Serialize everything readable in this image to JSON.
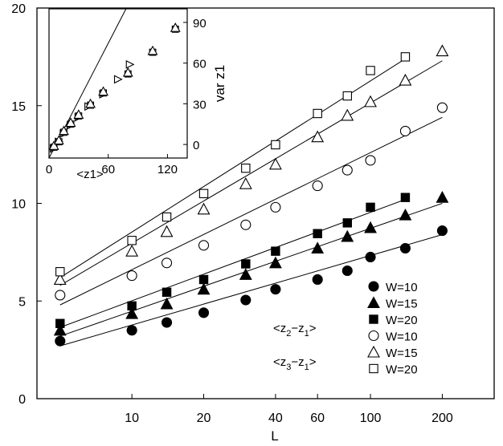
{
  "chart_data": [
    {
      "type": "scatter",
      "x_scale": "log",
      "title": "",
      "xlabel": "L",
      "ylabel": "",
      "xlim": [
        4,
        330
      ],
      "ylim": [
        0,
        20
      ],
      "x_ticks": [
        10,
        20,
        40,
        60,
        100,
        200
      ],
      "y_ticks": [
        0,
        5,
        10,
        15,
        20
      ],
      "grid": false,
      "legend": {
        "placement": "lower-right",
        "entries": [
          "W=10",
          "W=15",
          "W=20",
          "W=10",
          "W=15",
          "W=20"
        ],
        "group_labels": [
          {
            "main": "<z",
            "sub1": "2",
            "mid": "−z",
            "sub2": "1",
            "end": ">"
          },
          {
            "main": "<z",
            "sub1": "3",
            "mid": "−z",
            "sub2": "1",
            "end": ">"
          }
        ]
      },
      "series": [
        {
          "name": "W=10",
          "group": 0,
          "marker": "filled-circle",
          "x": [
            5,
            10,
            14,
            20,
            30,
            40,
            60,
            80,
            100,
            140,
            200
          ],
          "y": [
            2.95,
            3.5,
            3.9,
            4.4,
            5.05,
            5.6,
            6.1,
            6.55,
            7.25,
            7.7,
            8.6
          ],
          "fit_y": [
            2.7,
            8.4
          ]
        },
        {
          "name": "W=15",
          "group": 0,
          "marker": "filled-triangle",
          "x": [
            5,
            10,
            14,
            20,
            30,
            40,
            60,
            80,
            100,
            140,
            200
          ],
          "y": [
            3.5,
            4.35,
            4.85,
            5.6,
            6.35,
            6.95,
            7.7,
            8.3,
            8.75,
            9.4,
            10.3
          ],
          "fit_y": [
            3.2,
            10.0
          ]
        },
        {
          "name": "W=20",
          "group": 0,
          "marker": "filled-square",
          "x": [
            5,
            10,
            14,
            20,
            30,
            40,
            60,
            80,
            100,
            140
          ],
          "y": [
            3.85,
            4.75,
            5.45,
            6.1,
            6.9,
            7.55,
            8.45,
            9.0,
            9.8,
            10.3
          ],
          "fit_y": [
            3.65,
            10.2
          ]
        },
        {
          "name": "W=10",
          "group": 1,
          "marker": "open-circle",
          "x": [
            5,
            10,
            14,
            20,
            30,
            40,
            60,
            80,
            100,
            140,
            200
          ],
          "y": [
            5.3,
            6.3,
            6.95,
            7.85,
            8.9,
            9.8,
            10.9,
            11.7,
            12.2,
            13.7,
            14.9
          ],
          "fit_y": [
            4.8,
            14.4
          ]
        },
        {
          "name": "W=15",
          "group": 1,
          "marker": "open-triangle",
          "x": [
            5,
            10,
            14,
            20,
            30,
            40,
            60,
            80,
            100,
            140,
            200
          ],
          "y": [
            6.1,
            7.55,
            8.55,
            9.7,
            11.0,
            12.0,
            13.4,
            14.5,
            15.2,
            16.3,
            17.8
          ],
          "fit_y": [
            5.8,
            17.3
          ]
        },
        {
          "name": "W=20",
          "group": 1,
          "marker": "open-square",
          "x": [
            5,
            10,
            14,
            20,
            30,
            40,
            60,
            80,
            100,
            140
          ],
          "y": [
            6.5,
            8.1,
            9.3,
            10.5,
            11.8,
            13.0,
            14.6,
            15.5,
            16.8,
            17.5
          ],
          "fit_y": [
            6.2,
            17.4
          ]
        }
      ]
    },
    {
      "type": "scatter",
      "title": "",
      "xlabel": "<z1>",
      "ylabel": "var z1",
      "xlim": [
        0,
        140
      ],
      "ylim": [
        -10,
        100
      ],
      "x_ticks": [
        0,
        60,
        120
      ],
      "y_ticks": [
        0,
        30,
        60,
        90
      ],
      "y_axis_side": "right",
      "reference_line": {
        "x": [
          0,
          78
        ],
        "y": [
          -10,
          100
        ]
      },
      "series": [
        {
          "marker": "open-triangle-right",
          "x": [
            5,
            10,
            15,
            22,
            30,
            40,
            55,
            70,
            82
          ],
          "y": [
            -3,
            2,
            8,
            14,
            20,
            28,
            37,
            48,
            59
          ]
        },
        {
          "marker": "open-square",
          "x": [
            5,
            10,
            15,
            22,
            30,
            42,
            55,
            80,
            105,
            128
          ],
          "y": [
            -2,
            2,
            9,
            15,
            21,
            29,
            38,
            52,
            68,
            85
          ]
        },
        {
          "marker": "open-triangle",
          "x": [
            5,
            10,
            15,
            22,
            30,
            42,
            55,
            80,
            105,
            128
          ],
          "y": [
            -1,
            3,
            10,
            16,
            22,
            30,
            39,
            53,
            69,
            86
          ]
        }
      ]
    }
  ]
}
